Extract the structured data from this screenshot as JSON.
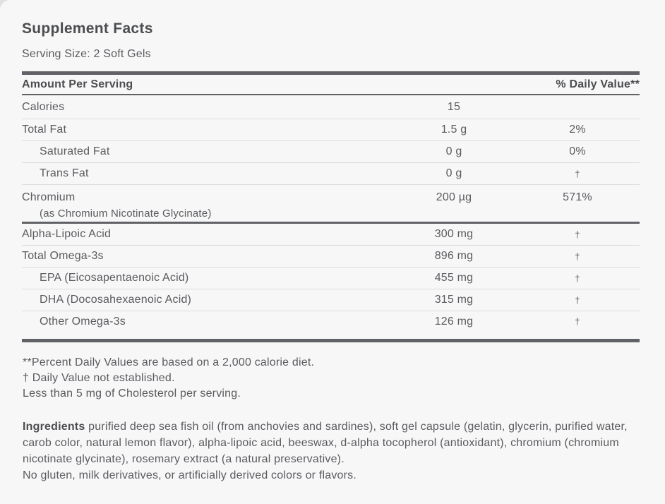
{
  "panel": {
    "title": "Supplement Facts",
    "serving_size": "Serving Size: 2 Soft Gels"
  },
  "table": {
    "amount_header": "Amount Per Serving",
    "dv_header": "% Daily Value**",
    "rows": [
      {
        "name": "Calories",
        "amount": "15",
        "dv": "",
        "indent": false
      },
      {
        "name": "Total Fat",
        "amount": "1.5 g",
        "dv": "2%",
        "indent": false
      },
      {
        "name": "Saturated Fat",
        "amount": "0 g",
        "dv": "0%",
        "indent": true
      },
      {
        "name": "Trans Fat",
        "amount": "0 g",
        "dv": "†",
        "indent": true
      },
      {
        "name": "Chromium",
        "sub": "(as Chromium Nicotinate Glycinate)",
        "amount": "200 µg",
        "dv": "571%",
        "indent": false,
        "thick_after": true
      },
      {
        "name": "Alpha-Lipoic Acid",
        "amount": "300 mg",
        "dv": "†",
        "indent": false
      },
      {
        "name": "Total Omega-3s",
        "amount": "896 mg",
        "dv": "†",
        "indent": false
      },
      {
        "name": "EPA (Eicosapentaenoic Acid)",
        "amount": "455 mg",
        "dv": "†",
        "indent": true
      },
      {
        "name": "DHA (Docosahexaenoic Acid)",
        "amount": "315 mg",
        "dv": "†",
        "indent": true
      },
      {
        "name": "Other Omega-3s",
        "amount": "126 mg",
        "dv": "†",
        "indent": true
      }
    ]
  },
  "footnotes": [
    "**Percent Daily Values are based on a 2,000 calorie diet.",
    "† Daily Value not established.",
    "Less than 5 mg of Cholesterol per serving."
  ],
  "ingredients": {
    "label": "Ingredients",
    "text": "purified deep sea fish oil (from anchovies and sardines), soft gel capsule (gelatin, glycerin, purified water, carob color, natural lemon flavor), alpha-lipoic acid, beeswax, d-alpha tocopherol (antioxidant), chromium (chromium nicotinate glycinate), rosemary extract (a natural preservative).",
    "note": "No gluten, milk derivatives, or artificially derived colors or flavors."
  },
  "colors": {
    "bg": "#f7f7f8",
    "outer": "#dfe0e2",
    "text": "#5a5b5e",
    "heading": "#4c4d4f",
    "bar": "#616265",
    "rule": "#dadbdc"
  }
}
